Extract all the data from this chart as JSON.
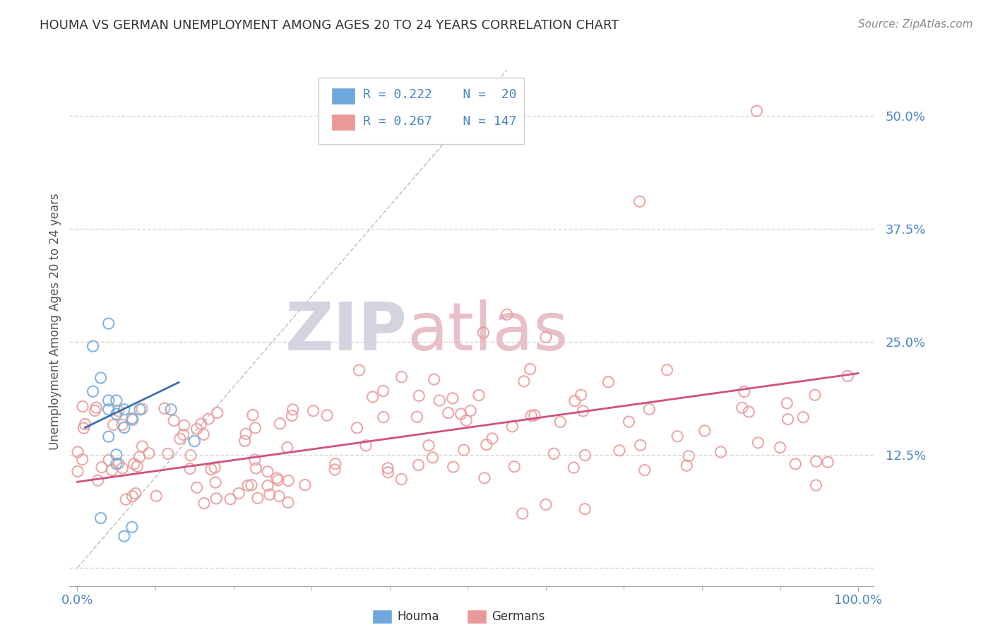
{
  "title": "HOUMA VS GERMAN UNEMPLOYMENT AMONG AGES 20 TO 24 YEARS CORRELATION CHART",
  "source": "Source: ZipAtlas.com",
  "ylabel": "Unemployment Among Ages 20 to 24 years",
  "houma_color": "#6fa8dc",
  "german_color": "#ea9999",
  "trendline_houma_color": "#3d6faf",
  "trendline_german_color": "#d05080",
  "diagonal_color": "#aaaacc",
  "legend_R_houma": "R = 0.222",
  "legend_N_houma": "N =  20",
  "legend_R_german": "R = 0.267",
  "legend_N_german": "N = 147",
  "background_color": "#ffffff",
  "grid_color": "#cccccc",
  "tick_color": "#4a86c8",
  "title_color": "#333333"
}
